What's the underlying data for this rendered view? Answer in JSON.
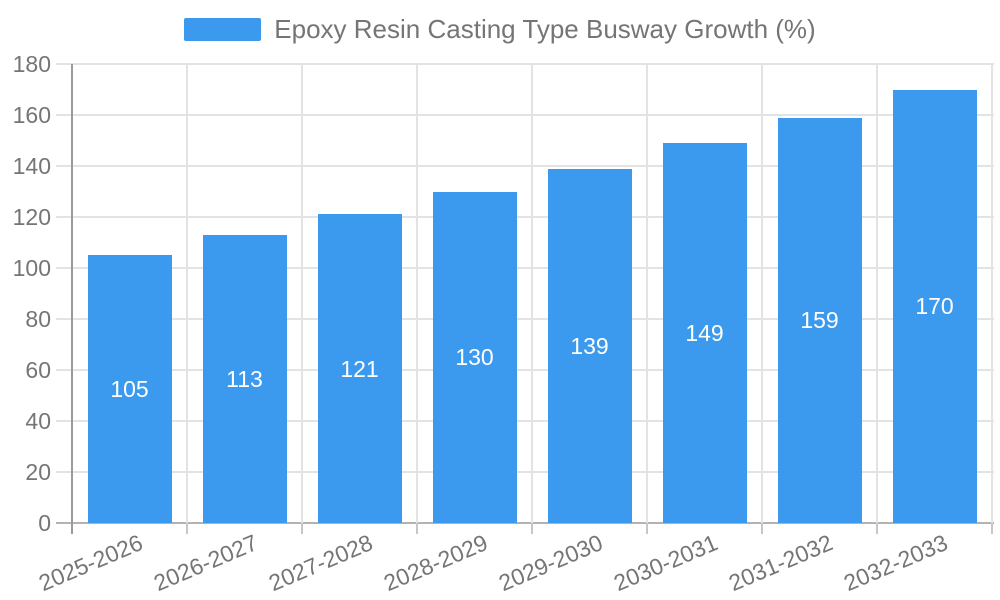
{
  "chart_data": {
    "type": "bar",
    "title": "Epoxy Resin Casting Type Busway Growth (%)",
    "legend": {
      "position": "top",
      "entries": [
        "Epoxy Resin Casting Type Busway Growth (%)"
      ]
    },
    "categories": [
      "2025-2026",
      "2026-2027",
      "2027-2028",
      "2028-2029",
      "2029-2030",
      "2030-2031",
      "2031-2032",
      "2032-2033"
    ],
    "series": [
      {
        "name": "Epoxy Resin Casting Type Busway Growth (%)",
        "values": [
          105,
          113,
          121,
          130,
          139,
          149,
          159,
          170
        ]
      }
    ],
    "data_labels_visible": true,
    "xlabel": "",
    "ylabel": "",
    "ylim": [
      0,
      180
    ],
    "y_ticks": [
      0,
      20,
      40,
      60,
      80,
      100,
      120,
      140,
      160,
      180
    ],
    "x_label_rotation_deg": -23,
    "grid": true,
    "colors": {
      "bar": "#3b99ee",
      "bar_value_label": "#ffffff",
      "axis_text": "#757575",
      "legend_text": "#757575",
      "gridline": "#e3e3e3",
      "x_axis_line": "#b3b3b3",
      "y_axis_line": "#9a9a9a",
      "tick": "#c6c6c6",
      "background": "#ffffff"
    }
  }
}
